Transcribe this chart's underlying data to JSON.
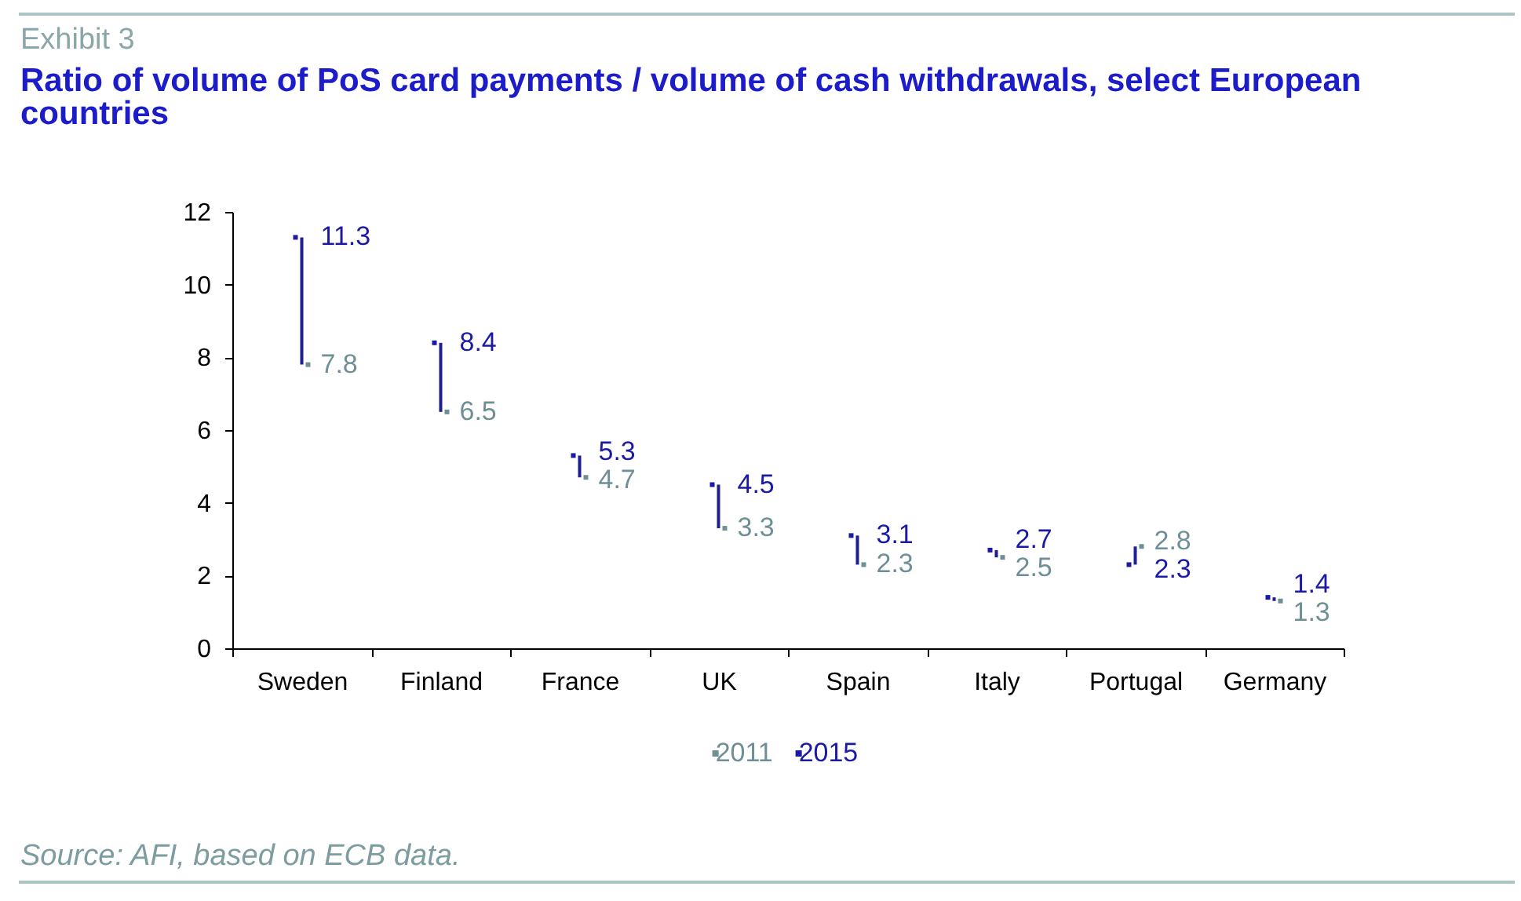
{
  "chart_data": {
    "type": "bar",
    "title": "Ratio of volume of PoS card payments / volume of cash withdrawals, select European countries",
    "annotations": [
      "Exhibit 3",
      "Source: AFI, based on ECB data."
    ],
    "categories": [
      "Sweden",
      "Finland",
      "France",
      "UK",
      "Spain",
      "Italy",
      "Portugal",
      "Germany"
    ],
    "series": [
      {
        "color": "#1f1f8f",
        "base": [
          7.8,
          6.5,
          4.7,
          3.3,
          2.3,
          2.5,
          2.8,
          1.3
        ],
        "values": [
          3.5,
          1.9,
          0.6,
          1.2,
          0.8,
          0.2,
          -0.5,
          0.1
        ]
      },
      {
        "type": "scatter",
        "name": "2011",
        "color": "#6f8f97",
        "marker": "square",
        "values": [
          7.8,
          6.5,
          4.7,
          3.3,
          2.3,
          2.5,
          2.8,
          1.3
        ],
        "value_labels": [
          "7.8",
          "6.5",
          "4.7",
          "3.3",
          "2.3",
          "2.5",
          "2.8",
          "1.3"
        ]
      },
      {
        "type": "scatter",
        "name": "2015",
        "color": "#1a1aa6",
        "marker": "square",
        "values": [
          11.3,
          8.4,
          5.3,
          4.5,
          3.1,
          2.7,
          2.3,
          1.4
        ],
        "value_labels": [
          "11.3",
          "8.4",
          "5.3",
          "4.5",
          "3.1",
          "2.7",
          "2.3",
          "1.4"
        ]
      }
    ],
    "ylim": [
      0,
      12
    ],
    "yticks": [
      0,
      2,
      4,
      6,
      8,
      10,
      12
    ],
    "grid": false,
    "legend": "bottom"
  }
}
